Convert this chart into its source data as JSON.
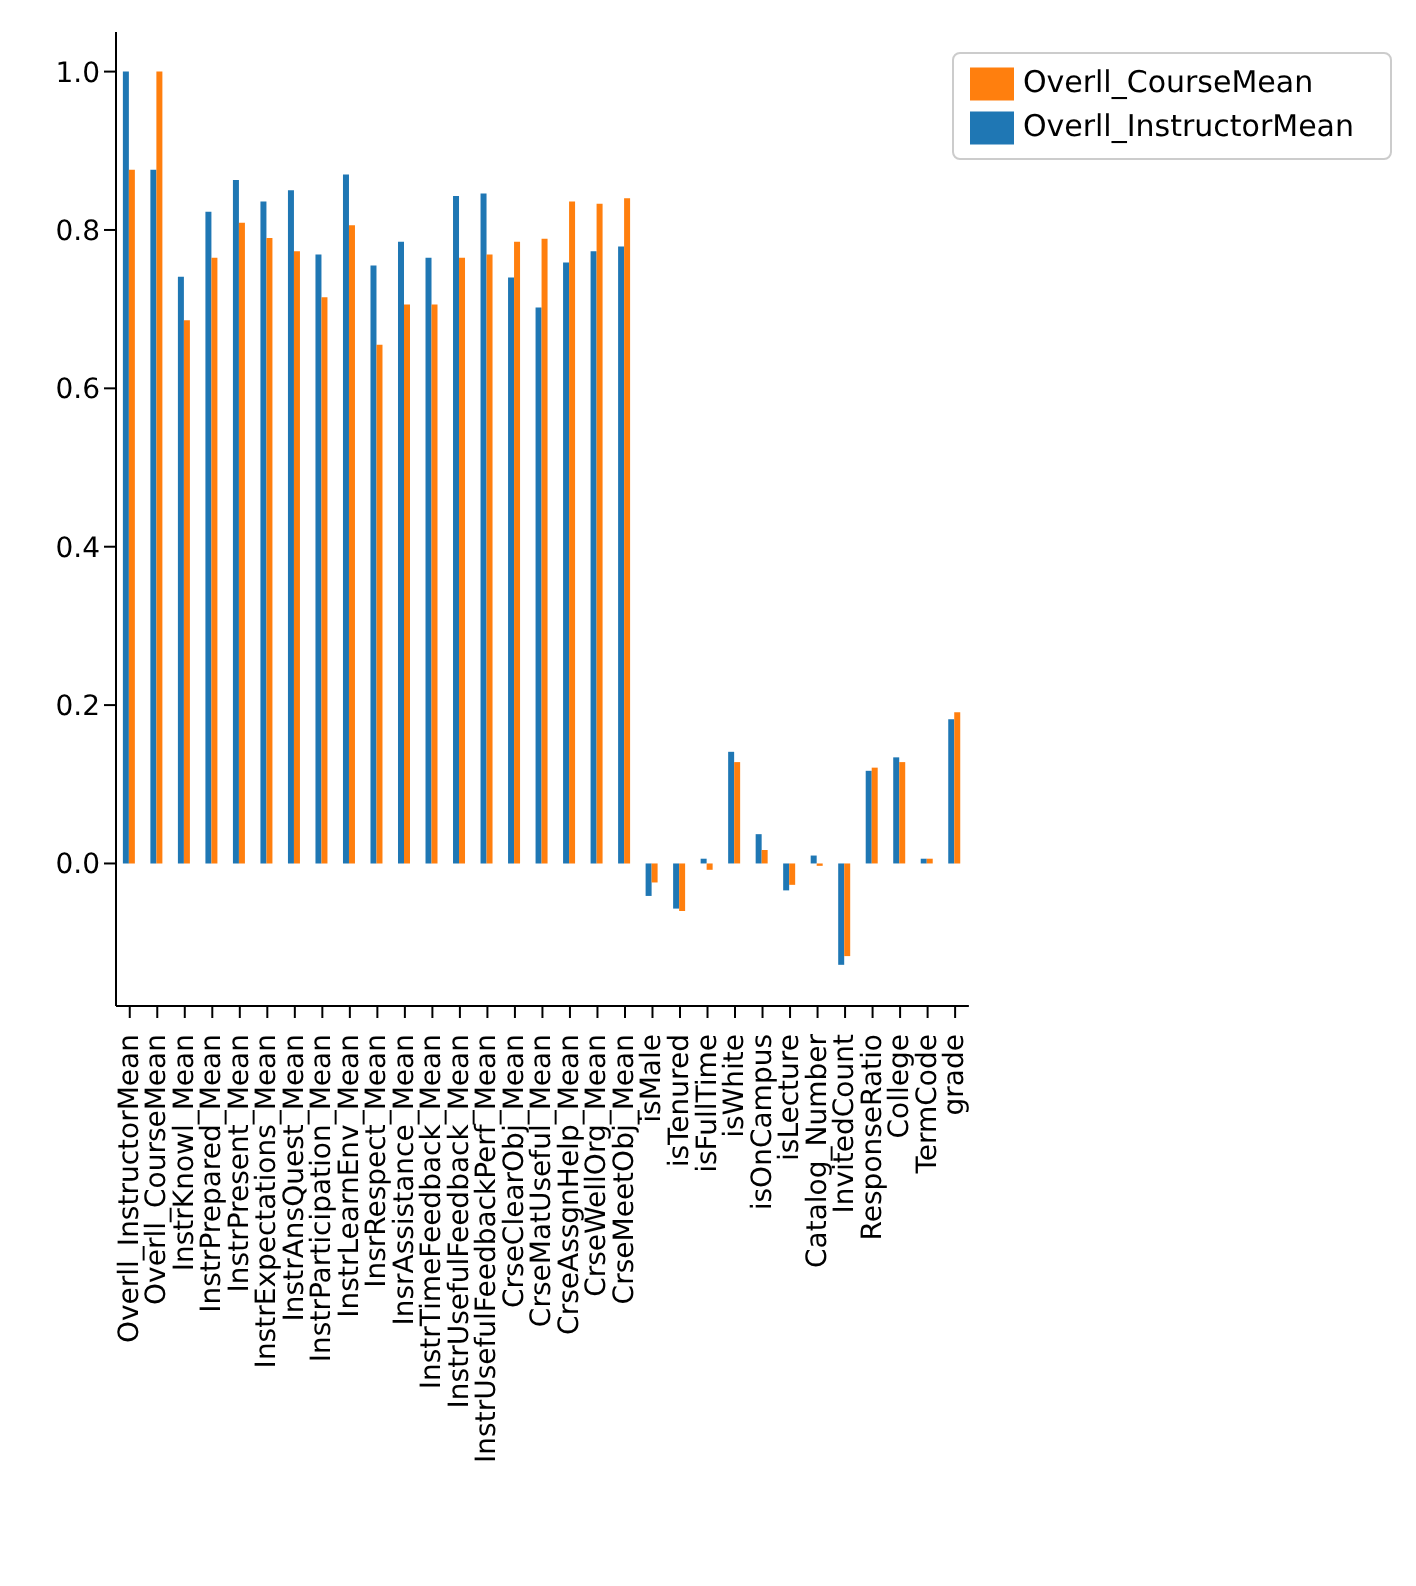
{
  "chart_data": {
    "type": "bar",
    "categories": [
      "Overll_InstructorMean",
      "Overll_CourseMean",
      "InstrKnowl_Mean",
      "InstrPrepared_Mean",
      "InstrPresent_Mean",
      "InstrExpectations_Mean",
      "InstrAnsQuest_Mean",
      "InstrParticipation_Mean",
      "InstrLearnEnv_Mean",
      "InsrRespect_Mean",
      "InsrAssistance_Mean",
      "InstrTimeFeedback_Mean",
      "InstrUsefulFeedback_Mean",
      "InstrUsefulFeedbackPerf_Mean",
      "CrseClearObj_Mean",
      "CrseMatUseful_Mean",
      "CrseAssgnHelp_Mean",
      "CrseWellOrg_Mean",
      "CrseMeetObj_Mean",
      "isMale",
      "isTenured",
      "isFullTime",
      "isWhite",
      "isOnCampus",
      "isLecture",
      "Catalog_Number",
      "InvitedCount",
      "ResponseRatio",
      "College",
      "TermCode",
      "grade"
    ],
    "series": [
      {
        "name": "Overll_InstructorMean",
        "color": "#1f77b4",
        "values": [
          1.0,
          0.876,
          0.741,
          0.823,
          0.863,
          0.836,
          0.85,
          0.769,
          0.87,
          0.755,
          0.785,
          0.765,
          0.843,
          0.846,
          0.74,
          0.702,
          0.759,
          0.773,
          0.779,
          -0.041,
          -0.057,
          0.006,
          0.141,
          0.037,
          -0.034,
          0.01,
          -0.128,
          0.117,
          0.134,
          0.006,
          0.182
        ]
      },
      {
        "name": "Overll_CourseMean",
        "color": "#ff7f0e",
        "values": [
          0.876,
          1.0,
          0.686,
          0.765,
          0.809,
          0.79,
          0.773,
          0.715,
          0.806,
          0.655,
          0.706,
          0.706,
          0.765,
          0.769,
          0.785,
          0.789,
          0.836,
          0.833,
          0.84,
          -0.024,
          -0.06,
          -0.008,
          0.128,
          0.017,
          -0.027,
          -0.003,
          -0.117,
          0.121,
          0.128,
          0.006,
          0.191
        ]
      }
    ],
    "ylim": [
      -0.18,
      1.05
    ],
    "yticks": [
      {
        "value": 0,
        "label": "0.0"
      },
      {
        "value": 0.2,
        "label": "0.2"
      },
      {
        "value": 0.4,
        "label": "0.4"
      },
      {
        "value": 0.6,
        "label": "0.6"
      },
      {
        "value": 0.8,
        "label": "0.8"
      },
      {
        "value": 1,
        "label": "1.0"
      }
    ],
    "legend": "top right",
    "grid": false
  }
}
